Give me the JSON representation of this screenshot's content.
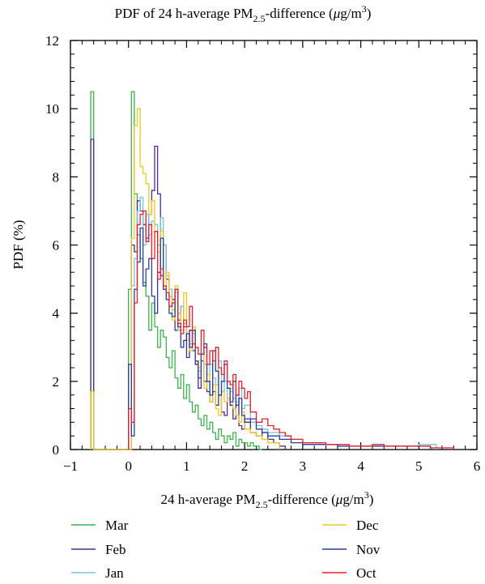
{
  "chart_data": {
    "type": "line",
    "title": "PDF of 24 h-average PM",
    "title_sub": "2.5",
    "title_suffix": "-difference (",
    "title_mu": "μ",
    "title_unit": "g/m",
    "title_sup": "3",
    "title_close": ")",
    "xlabel": "24 h-average PM",
    "xlabel_sub": "2.5",
    "xlabel_suffix": "-difference (",
    "xlabel_mu": "μ",
    "xlabel_unit": "g/m",
    "xlabel_sup": "3",
    "xlabel_close": ")",
    "ylabel": "PDF (%)",
    "xlim": [
      -1,
      6
    ],
    "ylim": [
      0,
      12
    ],
    "xticks": [
      -1,
      0,
      1,
      2,
      3,
      4,
      5,
      6
    ],
    "xtick_labels": [
      "−1",
      "0",
      "1",
      "2",
      "3",
      "4",
      "5",
      "6"
    ],
    "yticks": [
      0,
      2,
      4,
      6,
      8,
      10,
      12
    ],
    "ytick_labels": [
      "0",
      "2",
      "4",
      "6",
      "8",
      "10",
      "12"
    ],
    "grid": false,
    "legend_position": "bottom",
    "series": [
      {
        "name": "Mar",
        "color": "#3cb44b",
        "x": [
          -0.65,
          -0.6,
          0.0,
          0.05,
          0.1,
          0.15,
          0.2,
          0.25,
          0.3,
          0.35,
          0.4,
          0.45,
          0.5,
          0.55,
          0.6,
          0.65,
          0.7,
          0.75,
          0.8,
          0.85,
          0.9,
          0.95,
          1.0,
          1.05,
          1.1,
          1.15,
          1.2,
          1.25,
          1.3,
          1.35,
          1.4,
          1.45,
          1.5,
          1.55,
          1.6,
          1.65,
          1.7,
          1.75,
          1.8,
          1.85,
          1.9,
          1.95,
          2.0,
          2.05,
          2.1,
          2.15,
          2.2,
          2.25,
          2.3
        ],
        "y": [
          10.5,
          0,
          4.7,
          10.5,
          7.5,
          6.3,
          5.6,
          4.9,
          4.5,
          3.5,
          4.3,
          3.6,
          3.0,
          3.5,
          3.3,
          2.7,
          2.4,
          2.9,
          2.1,
          1.8,
          2.2,
          1.5,
          1.9,
          1.4,
          1.1,
          1.3,
          0.9,
          0.7,
          1.0,
          0.6,
          0.8,
          0.5,
          0.3,
          0.6,
          0.4,
          0.2,
          0.4,
          0.3,
          0.5,
          0.1,
          0.3,
          0.2,
          0.2,
          0.1,
          0.2,
          0.1,
          0.1,
          0.0,
          0.0
        ]
      },
      {
        "name": "Feb",
        "color": "#4b2b8f",
        "x": [
          -0.65,
          -0.6,
          0.05,
          0.1,
          0.15,
          0.2,
          0.25,
          0.3,
          0.35,
          0.4,
          0.45,
          0.5,
          0.55,
          0.6,
          0.65,
          0.7,
          0.75,
          0.8,
          0.85,
          0.9,
          0.95,
          1.0,
          1.05,
          1.1,
          1.15,
          1.2,
          1.25,
          1.3,
          1.35,
          1.4,
          1.45,
          1.5,
          1.55,
          1.6,
          1.65,
          1.7,
          1.75,
          1.8,
          1.85,
          1.9,
          1.95,
          2.0,
          2.1,
          2.2,
          2.3,
          2.4,
          2.5,
          2.6,
          2.7
        ],
        "y": [
          9.1,
          0,
          6.0,
          5.8,
          7.3,
          7.0,
          6.6,
          6.2,
          6.9,
          7.6,
          8.9,
          7.5,
          5.1,
          6.0,
          5.0,
          4.5,
          4.4,
          3.5,
          3.8,
          4.2,
          3.6,
          2.7,
          3.5,
          2.9,
          2.5,
          1.8,
          2.6,
          2.0,
          1.7,
          1.4,
          1.7,
          1.3,
          1.6,
          1.1,
          1.0,
          1.5,
          1.3,
          0.9,
          1.6,
          0.7,
          0.6,
          0.9,
          0.5,
          0.4,
          0.5,
          0.3,
          0.2,
          0.1,
          0.0
        ]
      },
      {
        "name": "Jan",
        "color": "#74c7e3",
        "x": [
          0.05,
          0.1,
          0.15,
          0.2,
          0.25,
          0.3,
          0.35,
          0.4,
          0.45,
          0.5,
          0.55,
          0.6,
          0.65,
          0.7,
          0.75,
          0.8,
          0.85,
          0.9,
          0.95,
          1.0,
          1.05,
          1.1,
          1.15,
          1.2,
          1.25,
          1.3,
          1.35,
          1.4,
          1.45,
          1.5,
          1.55,
          1.6,
          1.65,
          1.7,
          1.75,
          1.8,
          1.85,
          1.9,
          1.95,
          2.0,
          2.1,
          2.2,
          2.3,
          2.4,
          2.6,
          2.8,
          3.0,
          3.3,
          3.6,
          4.0,
          4.5,
          5.0,
          5.3
        ],
        "y": [
          4.8,
          5.6,
          7.0,
          7.4,
          6.0,
          6.9,
          6.3,
          6.7,
          6.6,
          6.0,
          6.8,
          6.0,
          5.1,
          4.7,
          4.1,
          4.6,
          3.5,
          4.2,
          3.7,
          3.4,
          3.1,
          3.4,
          2.6,
          2.3,
          2.8,
          2.5,
          2.0,
          2.5,
          2.1,
          1.9,
          2.6,
          1.7,
          2.0,
          1.5,
          1.7,
          1.5,
          1.4,
          1.8,
          1.2,
          1.3,
          0.8,
          0.7,
          0.6,
          0.5,
          0.4,
          0.3,
          0.2,
          0.15,
          0.1,
          0.1,
          0.1,
          0.15,
          0.0
        ]
      },
      {
        "name": "Dec",
        "color": "#f2c71f",
        "x": [
          -0.65,
          -0.6,
          0.05,
          0.1,
          0.15,
          0.2,
          0.25,
          0.3,
          0.35,
          0.4,
          0.45,
          0.5,
          0.55,
          0.6,
          0.65,
          0.7,
          0.75,
          0.8,
          0.85,
          0.9,
          0.95,
          1.0,
          1.05,
          1.1,
          1.15,
          1.2,
          1.25,
          1.3,
          1.35,
          1.4,
          1.45,
          1.5,
          1.55,
          1.6,
          1.65,
          1.7,
          1.75,
          1.8,
          1.85,
          1.9,
          1.95,
          2.0,
          2.1,
          2.2,
          2.3,
          2.4,
          2.6
        ],
        "y": [
          1.7,
          0,
          6.2,
          9.5,
          10.0,
          8.3,
          8.1,
          7.8,
          6.9,
          7.3,
          6.4,
          5.8,
          6.4,
          4.8,
          5.2,
          4.5,
          3.8,
          4.8,
          4.0,
          3.5,
          4.6,
          3.2,
          2.9,
          3.6,
          2.6,
          2.4,
          2.8,
          1.8,
          2.2,
          1.4,
          1.9,
          1.2,
          1.0,
          1.7,
          1.4,
          1.5,
          1.8,
          1.2,
          1.0,
          0.8,
          1.1,
          0.6,
          0.5,
          0.4,
          0.3,
          0.2,
          0.0
        ]
      },
      {
        "name": "Nov",
        "color": "#2b3f9a",
        "x": [
          0.0,
          0.05,
          0.1,
          0.15,
          0.2,
          0.25,
          0.3,
          0.35,
          0.4,
          0.45,
          0.5,
          0.55,
          0.6,
          0.65,
          0.7,
          0.75,
          0.8,
          0.85,
          0.9,
          0.95,
          1.0,
          1.05,
          1.1,
          1.15,
          1.2,
          1.25,
          1.3,
          1.35,
          1.4,
          1.45,
          1.5,
          1.55,
          1.6,
          1.65,
          1.7,
          1.75,
          1.8,
          1.85,
          1.9,
          1.95,
          2.0,
          2.1,
          2.2,
          2.3,
          2.4,
          2.6,
          2.8,
          3.0,
          3.3,
          3.6,
          4.0,
          4.4,
          4.8,
          5.2
        ],
        "y": [
          2.5,
          0.4,
          4.7,
          5.5,
          6.5,
          4.8,
          5.3,
          5.6,
          4.5,
          4.0,
          5.2,
          6.2,
          4.7,
          4.4,
          4.0,
          3.9,
          4.7,
          3.6,
          3.0,
          3.2,
          3.4,
          3.0,
          3.5,
          2.6,
          2.1,
          2.8,
          3.1,
          2.0,
          1.6,
          2.9,
          2.3,
          1.6,
          2.0,
          2.5,
          1.8,
          1.4,
          2.0,
          1.3,
          1.5,
          1.0,
          0.8,
          0.9,
          0.6,
          0.5,
          0.4,
          0.3,
          0.2,
          0.15,
          0.15,
          0.1,
          0.1,
          0.1,
          0.1,
          0.0
        ]
      },
      {
        "name": "Oct",
        "color": "#e8202a",
        "x": [
          0.0,
          0.05,
          0.1,
          0.15,
          0.2,
          0.25,
          0.3,
          0.35,
          0.4,
          0.45,
          0.5,
          0.55,
          0.6,
          0.65,
          0.7,
          0.75,
          0.8,
          0.85,
          0.9,
          0.95,
          1.0,
          1.05,
          1.1,
          1.15,
          1.2,
          1.25,
          1.3,
          1.35,
          1.4,
          1.45,
          1.5,
          1.55,
          1.6,
          1.65,
          1.7,
          1.75,
          1.8,
          1.85,
          1.9,
          1.95,
          2.0,
          2.05,
          2.1,
          2.2,
          2.3,
          2.4,
          2.5,
          2.6,
          2.7,
          2.8,
          3.0,
          3.2,
          3.4,
          3.6,
          3.8,
          4.0,
          4.2,
          4.4,
          4.6,
          4.8,
          5.0,
          5.2,
          5.4,
          5.6
        ],
        "y": [
          1.2,
          0.8,
          4.3,
          6.6,
          6.9,
          7.0,
          6.1,
          6.6,
          5.6,
          6.4,
          5.0,
          5.3,
          4.8,
          4.6,
          4.2,
          4.3,
          4.7,
          3.7,
          3.4,
          3.8,
          3.6,
          4.2,
          3.1,
          3.0,
          2.8,
          3.5,
          3.0,
          2.5,
          2.9,
          2.6,
          3.0,
          2.4,
          2.2,
          2.6,
          2.0,
          1.9,
          2.2,
          1.6,
          2.0,
          1.8,
          1.5,
          1.7,
          1.1,
          0.8,
          0.9,
          0.7,
          0.6,
          0.5,
          0.4,
          0.3,
          0.2,
          0.2,
          0.15,
          0.15,
          0.1,
          0.1,
          0.15,
          0.1,
          0.1,
          0.1,
          0.1,
          0.05,
          0.05,
          0.0
        ]
      }
    ]
  }
}
